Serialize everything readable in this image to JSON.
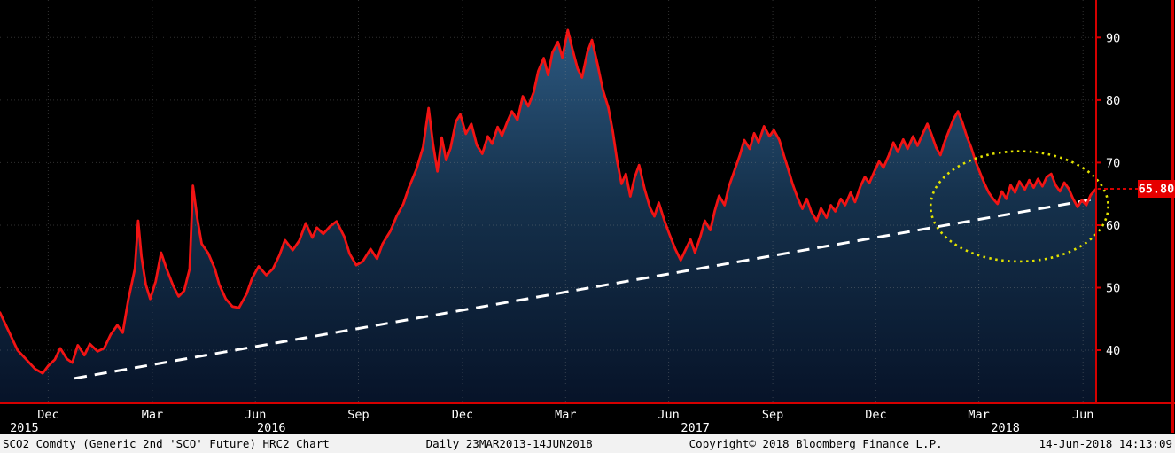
{
  "colors": {
    "line": "#f21414",
    "axis": "#d40000",
    "grid": "#8c8c8c",
    "trend": "#ffffff",
    "highlight": "#e3e300",
    "label_bg": "#e60000",
    "label_text": "#ffffff",
    "fill_top": "#2e5c85",
    "fill_bottom": "#07142a",
    "statusbar_bg": "#f2f2f2",
    "statusbar_text": "#000000"
  },
  "statusbar": {
    "left": "SCO2 Comdty (Generic 2nd 'SCO' Future) HRC2 Chart",
    "period": "Daily 23MAR2013-14JUN2018",
    "copyright": "Copyright© 2018 Bloomberg Finance L.P.",
    "timestamp": "14-Jun-2018 14:13:09"
  },
  "chart_data": {
    "type": "line",
    "title": "SCO2 Comdty (Generic 2nd 'SCO' Future) HRC2 Chart",
    "period": "Daily 23MAR2013-14JUN2018",
    "ylim": [
      31.5,
      96
    ],
    "y_ticks": [
      40,
      50,
      60,
      70,
      80,
      90
    ],
    "x_ticks": [
      {
        "pos": 0.044,
        "month": "Dec",
        "year": "2015",
        "year_dx": -27
      },
      {
        "pos": 0.139,
        "month": "Mar"
      },
      {
        "pos": 0.233,
        "month": "Jun",
        "year": "2016",
        "year_dx": 18
      },
      {
        "pos": 0.327,
        "month": "Sep"
      },
      {
        "pos": 0.422,
        "month": "Dec"
      },
      {
        "pos": 0.516,
        "month": "Mar"
      },
      {
        "pos": 0.61,
        "month": "Jun",
        "year": "2017",
        "year_dx": 30
      },
      {
        "pos": 0.705,
        "month": "Sep"
      },
      {
        "pos": 0.799,
        "month": "Dec"
      },
      {
        "pos": 0.893,
        "month": "Mar",
        "year": "2018",
        "year_dx": 30
      },
      {
        "pos": 0.988,
        "month": "Jun"
      }
    ],
    "trendline": {
      "x1": 0.068,
      "y1": 35.5,
      "x2": 1.0,
      "y2": 64.2,
      "style": "dashed-white"
    },
    "highlight_ellipse": {
      "cx": 0.93,
      "cy": 63,
      "rx": 0.081,
      "ry": 8.8
    },
    "last_price": {
      "value": "65.80",
      "y": 65.8
    },
    "series": [
      {
        "name": "SCO2 Comdty last price",
        "points": [
          [
            0,
            46
          ],
          [
            0.008,
            43
          ],
          [
            0.016,
            40
          ],
          [
            0.024,
            38.5
          ],
          [
            0.032,
            37
          ],
          [
            0.039,
            36.3
          ],
          [
            0.044,
            37.5
          ],
          [
            0.05,
            38.5
          ],
          [
            0.055,
            40.3
          ],
          [
            0.061,
            38.6
          ],
          [
            0.066,
            38
          ],
          [
            0.071,
            40.8
          ],
          [
            0.077,
            39.2
          ],
          [
            0.082,
            41
          ],
          [
            0.089,
            39.8
          ],
          [
            0.095,
            40.3
          ],
          [
            0.101,
            42.5
          ],
          [
            0.107,
            44
          ],
          [
            0.112,
            42.8
          ],
          [
            0.117,
            48
          ],
          [
            0.123,
            53
          ],
          [
            0.126,
            60.7
          ],
          [
            0.129,
            55
          ],
          [
            0.133,
            50.5
          ],
          [
            0.137,
            48.2
          ],
          [
            0.142,
            51
          ],
          [
            0.147,
            55.6
          ],
          [
            0.152,
            53
          ],
          [
            0.158,
            50.3
          ],
          [
            0.163,
            48.6
          ],
          [
            0.168,
            49.5
          ],
          [
            0.173,
            53
          ],
          [
            0.176,
            66.3
          ],
          [
            0.18,
            61
          ],
          [
            0.184,
            57
          ],
          [
            0.19,
            55.5
          ],
          [
            0.196,
            53
          ],
          [
            0.2,
            50.5
          ],
          [
            0.206,
            48.2
          ],
          [
            0.212,
            47
          ],
          [
            0.218,
            46.8
          ],
          [
            0.225,
            49
          ],
          [
            0.23,
            51.5
          ],
          [
            0.236,
            53.4
          ],
          [
            0.243,
            52
          ],
          [
            0.249,
            53
          ],
          [
            0.255,
            55.2
          ],
          [
            0.26,
            57.6
          ],
          [
            0.267,
            56
          ],
          [
            0.273,
            57.5
          ],
          [
            0.279,
            60.3
          ],
          [
            0.285,
            58
          ],
          [
            0.289,
            59.6
          ],
          [
            0.295,
            58.6
          ],
          [
            0.301,
            59.8
          ],
          [
            0.307,
            60.6
          ],
          [
            0.314,
            58.2
          ],
          [
            0.319,
            55.4
          ],
          [
            0.325,
            53.6
          ],
          [
            0.331,
            54.2
          ],
          [
            0.338,
            56.2
          ],
          [
            0.344,
            54.6
          ],
          [
            0.349,
            57
          ],
          [
            0.356,
            59
          ],
          [
            0.362,
            61.5
          ],
          [
            0.368,
            63.4
          ],
          [
            0.373,
            66
          ],
          [
            0.38,
            69
          ],
          [
            0.386,
            72.5
          ],
          [
            0.391,
            78.7
          ],
          [
            0.395,
            73
          ],
          [
            0.399,
            68.6
          ],
          [
            0.403,
            74
          ],
          [
            0.407,
            70.4
          ],
          [
            0.411,
            72.3
          ],
          [
            0.416,
            76.6
          ],
          [
            0.42,
            77.7
          ],
          [
            0.425,
            74.6
          ],
          [
            0.43,
            76.2
          ],
          [
            0.435,
            72.8
          ],
          [
            0.44,
            71.4
          ],
          [
            0.445,
            74.2
          ],
          [
            0.449,
            73
          ],
          [
            0.454,
            75.7
          ],
          [
            0.458,
            74.3
          ],
          [
            0.463,
            76.6
          ],
          [
            0.467,
            78.2
          ],
          [
            0.472,
            76.8
          ],
          [
            0.477,
            80.6
          ],
          [
            0.482,
            79
          ],
          [
            0.487,
            81.3
          ],
          [
            0.491,
            84.6
          ],
          [
            0.496,
            86.7
          ],
          [
            0.5,
            84
          ],
          [
            0.504,
            87.6
          ],
          [
            0.509,
            89.3
          ],
          [
            0.513,
            86.8
          ],
          [
            0.518,
            91.2
          ],
          [
            0.522,
            88.3
          ],
          [
            0.527,
            85
          ],
          [
            0.531,
            83.6
          ],
          [
            0.536,
            87.7
          ],
          [
            0.54,
            89.6
          ],
          [
            0.545,
            85.8
          ],
          [
            0.55,
            81.6
          ],
          [
            0.555,
            78.8
          ],
          [
            0.559,
            75
          ],
          [
            0.563,
            70.3
          ],
          [
            0.567,
            66.6
          ],
          [
            0.571,
            68.2
          ],
          [
            0.575,
            64.6
          ],
          [
            0.579,
            67.6
          ],
          [
            0.583,
            69.6
          ],
          [
            0.588,
            65.8
          ],
          [
            0.593,
            62.8
          ],
          [
            0.597,
            61.4
          ],
          [
            0.601,
            63.6
          ],
          [
            0.606,
            60.8
          ],
          [
            0.611,
            58.4
          ],
          [
            0.616,
            56.2
          ],
          [
            0.621,
            54.4
          ],
          [
            0.626,
            56.3
          ],
          [
            0.63,
            57.7
          ],
          [
            0.634,
            55.6
          ],
          [
            0.639,
            58.2
          ],
          [
            0.643,
            60.7
          ],
          [
            0.648,
            59.2
          ],
          [
            0.652,
            62.2
          ],
          [
            0.656,
            64.7
          ],
          [
            0.661,
            63.2
          ],
          [
            0.665,
            66.2
          ],
          [
            0.67,
            68.7
          ],
          [
            0.675,
            71.2
          ],
          [
            0.679,
            73.6
          ],
          [
            0.684,
            72.2
          ],
          [
            0.688,
            74.7
          ],
          [
            0.692,
            73.2
          ],
          [
            0.697,
            75.8
          ],
          [
            0.702,
            74.2
          ],
          [
            0.706,
            75.2
          ],
          [
            0.711,
            73.6
          ],
          [
            0.715,
            71.2
          ],
          [
            0.719,
            69
          ],
          [
            0.723,
            66.6
          ],
          [
            0.728,
            64.2
          ],
          [
            0.732,
            62.6
          ],
          [
            0.736,
            64.2
          ],
          [
            0.74,
            62.2
          ],
          [
            0.745,
            60.7
          ],
          [
            0.749,
            62.7
          ],
          [
            0.754,
            61.2
          ],
          [
            0.758,
            63.2
          ],
          [
            0.762,
            62.2
          ],
          [
            0.767,
            64.2
          ],
          [
            0.771,
            63.2
          ],
          [
            0.776,
            65.2
          ],
          [
            0.78,
            63.7
          ],
          [
            0.785,
            66.2
          ],
          [
            0.789,
            67.7
          ],
          [
            0.793,
            66.7
          ],
          [
            0.798,
            68.7
          ],
          [
            0.802,
            70.2
          ],
          [
            0.806,
            69.2
          ],
          [
            0.811,
            71.2
          ],
          [
            0.815,
            73.2
          ],
          [
            0.819,
            71.7
          ],
          [
            0.824,
            73.7
          ],
          [
            0.828,
            72.2
          ],
          [
            0.833,
            74.2
          ],
          [
            0.837,
            72.7
          ],
          [
            0.842,
            74.7
          ],
          [
            0.846,
            76.2
          ],
          [
            0.85,
            74.4
          ],
          [
            0.854,
            72.4
          ],
          [
            0.858,
            71.2
          ],
          [
            0.862,
            73.4
          ],
          [
            0.866,
            75.2
          ],
          [
            0.87,
            77
          ],
          [
            0.874,
            78.2
          ],
          [
            0.878,
            76.4
          ],
          [
            0.882,
            74.2
          ],
          [
            0.886,
            72.4
          ],
          [
            0.89,
            70.2
          ],
          [
            0.894,
            68.4
          ],
          [
            0.898,
            66.7
          ],
          [
            0.902,
            65.2
          ],
          [
            0.906,
            64.2
          ],
          [
            0.91,
            63.4
          ],
          [
            0.914,
            65.4
          ],
          [
            0.918,
            64.2
          ],
          [
            0.922,
            66.4
          ],
          [
            0.926,
            65.2
          ],
          [
            0.93,
            67
          ],
          [
            0.935,
            65.7
          ],
          [
            0.939,
            67.2
          ],
          [
            0.943,
            66
          ],
          [
            0.947,
            67.4
          ],
          [
            0.951,
            66.2
          ],
          [
            0.955,
            67.7
          ],
          [
            0.959,
            68.2
          ],
          [
            0.963,
            66.4
          ],
          [
            0.967,
            65.4
          ],
          [
            0.971,
            66.8
          ],
          [
            0.975,
            65.8
          ],
          [
            0.979,
            64.2
          ],
          [
            0.983,
            62.9
          ],
          [
            0.987,
            64
          ],
          [
            0.991,
            63.2
          ],
          [
            0.995,
            64.8
          ],
          [
            1,
            65.8
          ]
        ]
      }
    ]
  }
}
